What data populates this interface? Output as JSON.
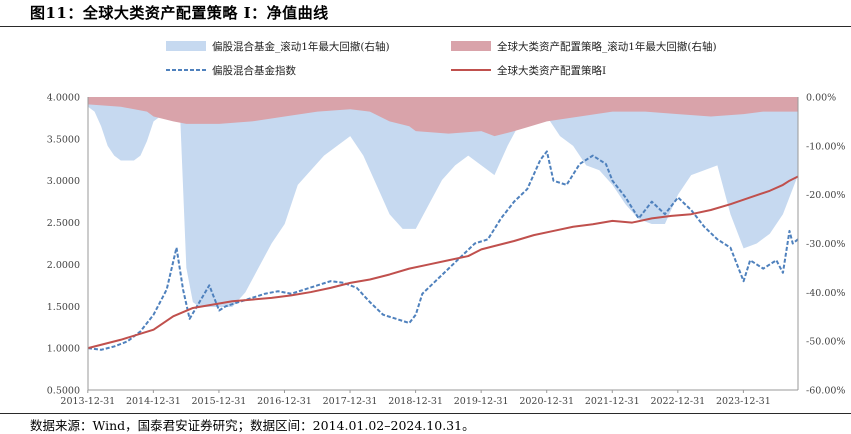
{
  "title": "图11：全球大类资产配置策略 I：净值曲线",
  "source": "数据来源：Wind，国泰君安证券研究；数据区间：2014.01.02–2024.10.31。",
  "colors": {
    "fund_dd": "#c6d9f0",
    "strat_dd": "#d9a3aa",
    "fund_line": "#4f81bd",
    "strat_line": "#c0504d"
  },
  "chart_data": {
    "type": "line",
    "x_labels": [
      "2013-12-31",
      "2014-12-31",
      "2015-12-31",
      "2016-12-31",
      "2017-12-31",
      "2018-12-31",
      "2019-12-31",
      "2020-12-31",
      "2021-12-31",
      "2022-12-31",
      "2023-12-31"
    ],
    "y_left_ticks": [
      "4.0000",
      "3.5000",
      "3.0000",
      "2.5000",
      "2.0000",
      "1.5000",
      "1.0000",
      "0.5000"
    ],
    "y_right_ticks": [
      "0.00%",
      "-10.00%",
      "-20.00%",
      "-30.00%",
      "-40.00%",
      "-50.00%",
      "-60.00%"
    ],
    "ylim_left": [
      0.5,
      4.0
    ],
    "ylim_right": [
      -60,
      0
    ],
    "legend_position": "top",
    "series": [
      {
        "name": "偏股混合基金_滚动1年最大回撤(右轴)",
        "type": "area",
        "axis": "right",
        "x": [
          2014.0,
          2014.1,
          2014.2,
          2014.3,
          2014.4,
          2014.5,
          2014.6,
          2014.7,
          2014.8,
          2014.9,
          2015.0,
          2015.2,
          2015.4,
          2015.5,
          2015.6,
          2015.7,
          2015.8,
          2016.0,
          2016.2,
          2016.4,
          2016.6,
          2016.8,
          2017.0,
          2017.2,
          2017.4,
          2017.6,
          2017.8,
          2018.0,
          2018.2,
          2018.4,
          2018.6,
          2018.8,
          2019.0,
          2019.2,
          2019.4,
          2019.6,
          2019.8,
          2020.0,
          2020.2,
          2020.4,
          2020.6,
          2020.8,
          2021.0,
          2021.2,
          2021.4,
          2021.6,
          2021.8,
          2022.0,
          2022.2,
          2022.4,
          2022.6,
          2022.8,
          2023.0,
          2023.2,
          2023.4,
          2023.6,
          2023.8,
          2024.0,
          2024.2,
          2024.4,
          2024.6,
          2024.83
        ],
        "y": [
          -2,
          -3,
          -6,
          -10,
          -12,
          -13,
          -13,
          -13,
          -12,
          -9,
          -5,
          -3,
          -2,
          -35,
          -42,
          -43,
          -43,
          -43,
          -43,
          -40,
          -35,
          -30,
          -26,
          -18,
          -15,
          -12,
          -10,
          -8,
          -12,
          -18,
          -24,
          -27,
          -27,
          -22,
          -17,
          -14,
          -12,
          -14,
          -16,
          -10,
          -5,
          -3,
          -4,
          -8,
          -10,
          -14,
          -15,
          -18,
          -22,
          -25,
          -26,
          -26,
          -20,
          -16,
          -15,
          -14,
          -24,
          -31,
          -30,
          -28,
          -24,
          -16
        ]
      },
      {
        "name": "全球大类资产配置策略_滚动1年最大回撤(右轴)",
        "type": "area",
        "axis": "right",
        "x": [
          2014.0,
          2014.5,
          2014.9,
          2015.0,
          2015.3,
          2015.5,
          2016.0,
          2016.5,
          2017.0,
          2017.5,
          2018.0,
          2018.3,
          2018.6,
          2018.9,
          2019.0,
          2019.5,
          2020.0,
          2020.2,
          2020.5,
          2021.0,
          2021.5,
          2022.0,
          2022.5,
          2023.0,
          2023.5,
          2024.0,
          2024.3,
          2024.83
        ],
        "y": [
          -1.5,
          -2,
          -3,
          -4,
          -5,
          -5.5,
          -5.5,
          -5,
          -4,
          -3,
          -2.5,
          -3,
          -5,
          -6,
          -7,
          -7.5,
          -7,
          -8,
          -7,
          -5,
          -4,
          -3,
          -3,
          -3.5,
          -4,
          -3.5,
          -3,
          -3
        ]
      },
      {
        "name": "偏股混合基金指数",
        "type": "line",
        "axis": "left",
        "style": "dashed",
        "x": [
          2014.0,
          2014.2,
          2014.4,
          2014.6,
          2014.8,
          2015.0,
          2015.2,
          2015.35,
          2015.45,
          2015.55,
          2015.7,
          2015.85,
          2016.0,
          2016.1,
          2016.3,
          2016.5,
          2016.7,
          2016.9,
          2017.1,
          2017.3,
          2017.5,
          2017.7,
          2017.9,
          2018.1,
          2018.3,
          2018.5,
          2018.7,
          2018.9,
          2019.0,
          2019.1,
          2019.3,
          2019.5,
          2019.7,
          2019.9,
          2020.1,
          2020.3,
          2020.5,
          2020.7,
          2020.9,
          2021.0,
          2021.1,
          2021.3,
          2021.5,
          2021.7,
          2021.9,
          2022.0,
          2022.2,
          2022.4,
          2022.6,
          2022.8,
          2023.0,
          2023.2,
          2023.4,
          2023.6,
          2023.8,
          2024.0,
          2024.1,
          2024.3,
          2024.5,
          2024.6,
          2024.7,
          2024.75,
          2024.83
        ],
        "y": [
          1.0,
          0.98,
          1.02,
          1.08,
          1.2,
          1.4,
          1.7,
          2.2,
          1.7,
          1.35,
          1.55,
          1.75,
          1.45,
          1.5,
          1.55,
          1.6,
          1.65,
          1.68,
          1.65,
          1.7,
          1.75,
          1.8,
          1.78,
          1.72,
          1.55,
          1.4,
          1.35,
          1.3,
          1.4,
          1.65,
          1.8,
          1.95,
          2.1,
          2.25,
          2.3,
          2.55,
          2.75,
          2.9,
          3.25,
          3.35,
          3.0,
          2.95,
          3.2,
          3.3,
          3.2,
          3.0,
          2.8,
          2.55,
          2.75,
          2.6,
          2.8,
          2.65,
          2.45,
          2.3,
          2.2,
          1.8,
          2.05,
          1.95,
          2.05,
          1.9,
          2.4,
          2.25,
          2.3
        ]
      },
      {
        "name": "全球大类资产配置策略I",
        "type": "line",
        "axis": "left",
        "style": "solid",
        "x": [
          2014.0,
          2014.5,
          2015.0,
          2015.3,
          2015.6,
          2015.9,
          2016.2,
          2016.5,
          2016.8,
          2017.1,
          2017.4,
          2017.7,
          2018.0,
          2018.3,
          2018.6,
          2018.9,
          2019.2,
          2019.5,
          2019.8,
          2020.0,
          2020.2,
          2020.5,
          2020.8,
          2021.1,
          2021.4,
          2021.7,
          2022.0,
          2022.3,
          2022.6,
          2022.9,
          2023.2,
          2023.5,
          2023.8,
          2024.1,
          2024.4,
          2024.6,
          2024.7,
          2024.83
        ],
        "y": [
          1.0,
          1.1,
          1.22,
          1.38,
          1.48,
          1.52,
          1.56,
          1.58,
          1.6,
          1.63,
          1.67,
          1.72,
          1.78,
          1.82,
          1.88,
          1.95,
          2.0,
          2.05,
          2.1,
          2.18,
          2.22,
          2.28,
          2.35,
          2.4,
          2.45,
          2.48,
          2.52,
          2.5,
          2.55,
          2.58,
          2.6,
          2.65,
          2.72,
          2.8,
          2.88,
          2.95,
          3.0,
          3.05
        ]
      }
    ]
  }
}
